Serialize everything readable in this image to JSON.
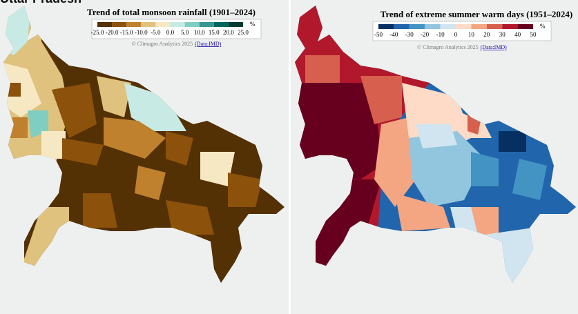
{
  "header": {
    "title": "Uttar Pradesh"
  },
  "maps": [
    {
      "title": "Trend of total monsoon rainfall (1901–2024)",
      "unit": "%",
      "legend_labels": [
        "-25.0",
        "-20.0",
        "-15.0",
        "-10.0",
        "-5.0",
        "0.0",
        "5.0",
        "10.0",
        "15.0",
        "20.0",
        "25.0"
      ],
      "legend_colors": [
        "#543005",
        "#8c510a",
        "#bf812d",
        "#dfc27d",
        "#f6e8c3",
        "#c7eae5",
        "#80cdc1",
        "#35978f",
        "#01665e",
        "#003c30"
      ],
      "credit": "© Climagro Analytics 2025",
      "credit_link": "(Data:IMD)"
    },
    {
      "title": "Trend of extreme summer warm days (1951–2024)",
      "unit": "%",
      "legend_labels": [
        "-50",
        "-40",
        "-30",
        "-20",
        "-10",
        "0",
        "10",
        "20",
        "30",
        "40",
        "50"
      ],
      "legend_colors": [
        "#053061",
        "#2166ac",
        "#4393c3",
        "#92c5de",
        "#d1e5f0",
        "#fddbc7",
        "#f4a582",
        "#d6604d",
        "#b2182b",
        "#67001f"
      ],
      "credit": "© Climagro Analytics 2025",
      "credit_link": "(Data:IMD)"
    }
  ]
}
